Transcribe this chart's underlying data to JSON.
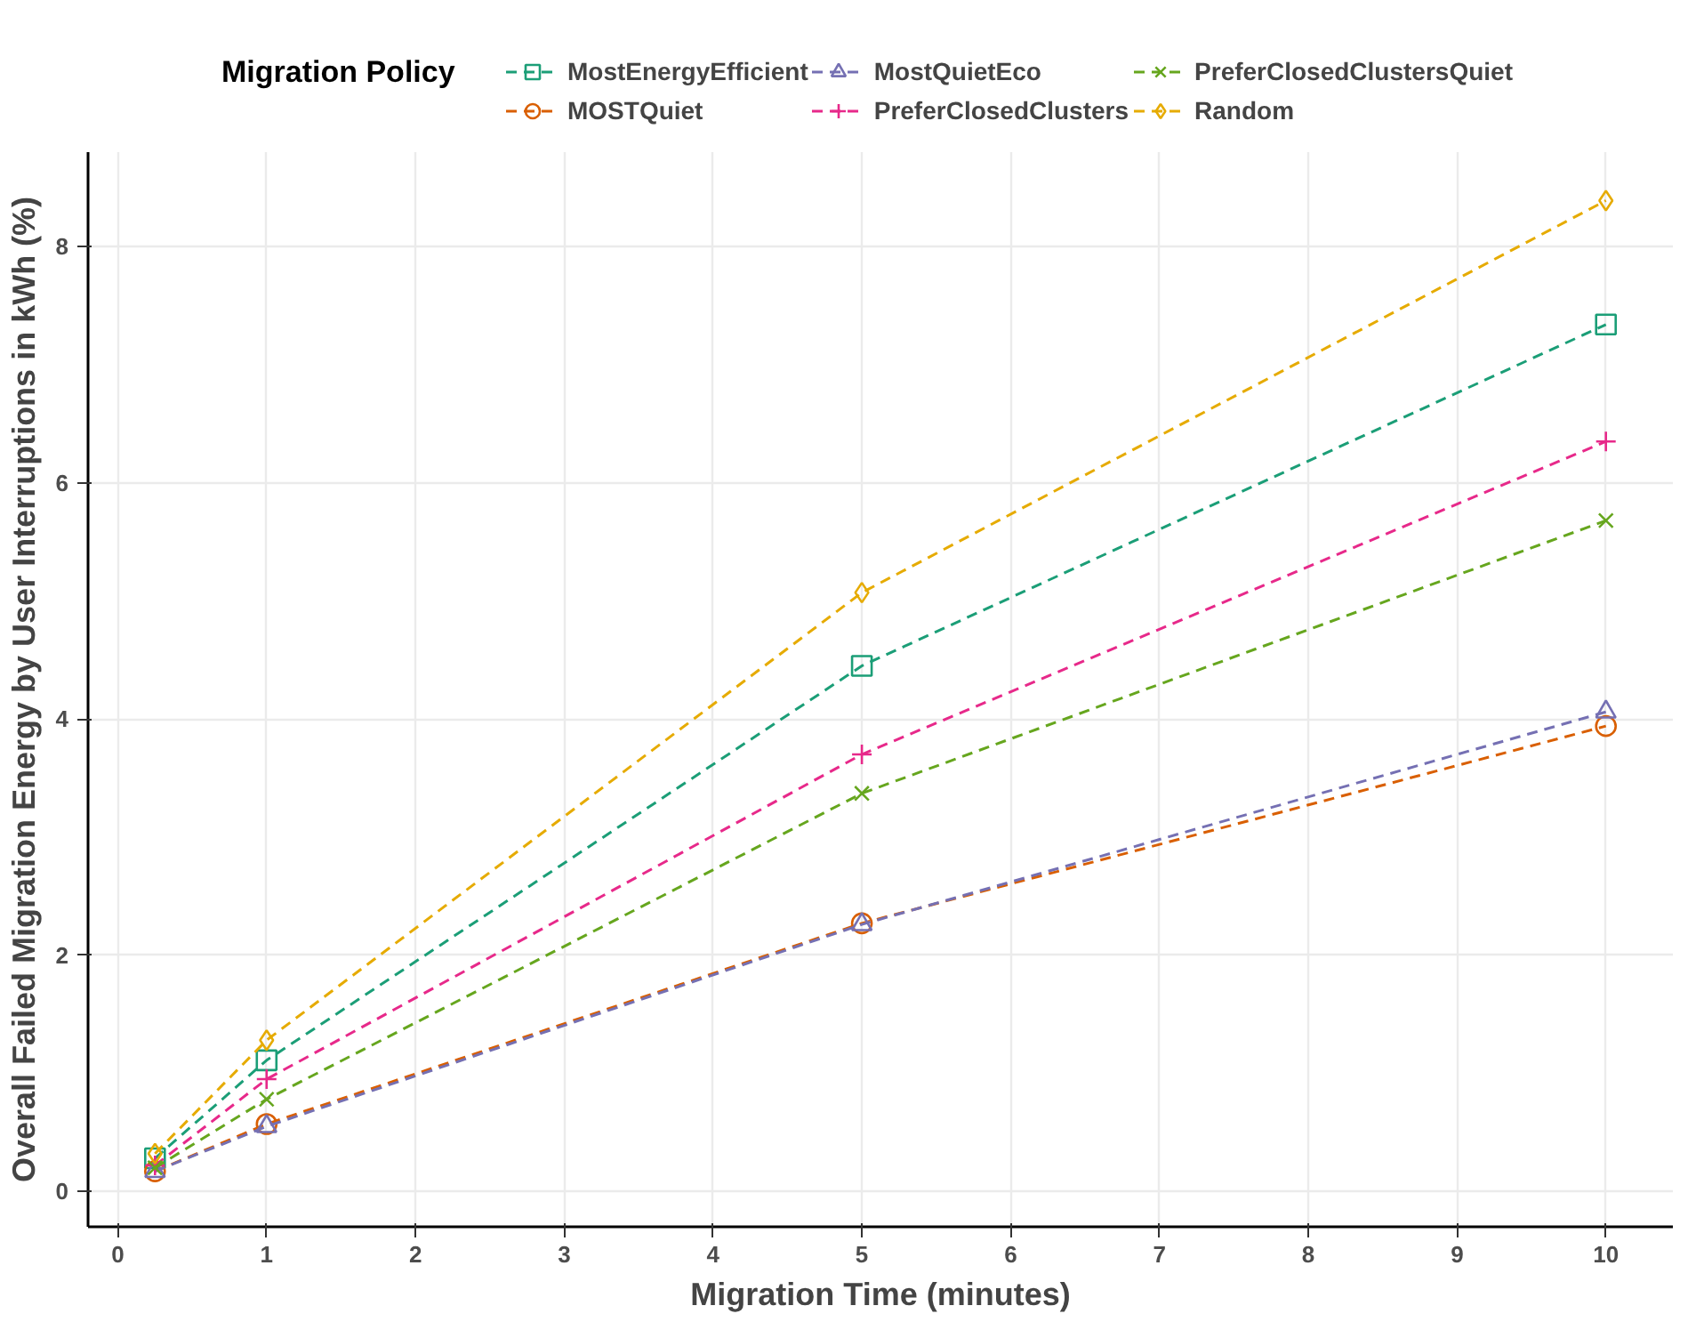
{
  "chart_data": {
    "type": "line",
    "xlabel": "Migration Time (minutes)",
    "ylabel": "Overall Failed Migration Energy by User Interruptions in kWh (%)",
    "legend_title": "Migration Policy",
    "legend": "top",
    "grid": true,
    "line_style": "dashed",
    "x": [
      0.25,
      1,
      5,
      10
    ],
    "xlim": [
      -0.2,
      10.45
    ],
    "ylim": [
      -0.3,
      8.8
    ],
    "xticks": [
      0,
      1,
      2,
      3,
      4,
      5,
      6,
      7,
      8,
      9,
      10
    ],
    "yticks": [
      0,
      2,
      4,
      6,
      8
    ],
    "series": [
      {
        "name": "MostEnergyEfficient",
        "color": "#1b9e77",
        "marker": "square",
        "values": [
          0.28,
          1.11,
          4.45,
          7.34
        ]
      },
      {
        "name": "MOSTQuiet",
        "color": "#d95f02",
        "marker": "circle",
        "values": [
          0.17,
          0.57,
          2.27,
          3.94
        ]
      },
      {
        "name": "MostQuietEco",
        "color": "#7570b3",
        "marker": "triangle",
        "values": [
          0.17,
          0.55,
          2.26,
          4.06
        ]
      },
      {
        "name": "PreferClosedClusters",
        "color": "#e7298a",
        "marker": "cross",
        "values": [
          0.22,
          0.95,
          3.7,
          6.35
        ]
      },
      {
        "name": "PreferClosedClustersQuiet",
        "color": "#66a61e",
        "marker": "x",
        "values": [
          0.2,
          0.78,
          3.37,
          5.68
        ]
      },
      {
        "name": "Random",
        "color": "#e6ab02",
        "marker": "diamond",
        "values": [
          0.32,
          1.28,
          5.07,
          8.39
        ]
      }
    ]
  }
}
